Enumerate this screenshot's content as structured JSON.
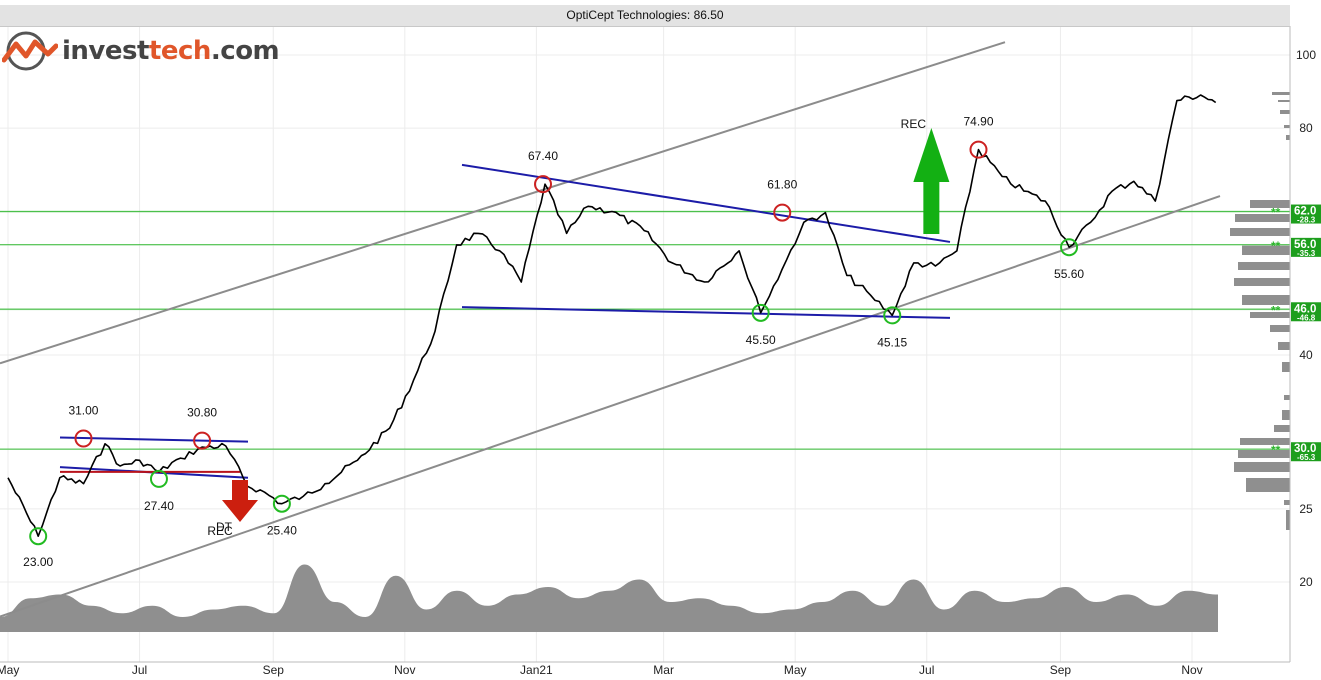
{
  "app": {
    "title": "OptiCept Technologies: 86.50",
    "logo": {
      "part1": "invest",
      "part2": "tech",
      "part3": ".com"
    }
  },
  "colors": {
    "price_line": "#000000",
    "trend_channel": "#8c8c8c",
    "rectangle": "#1c1ca8",
    "support_resistance": "#2db52d",
    "volume": "#8f8f8f",
    "buy_signal": "#13b013",
    "sell_signal": "#cc1f0f",
    "top_circle": "#cc2222",
    "bottom_circle": "#22bb22"
  },
  "chart_data": {
    "type": "line",
    "title": "OptiCept Technologies: 86.50",
    "y_scale": "log",
    "ylim": [
      17,
      104
    ],
    "y_ticks": [
      20,
      25,
      40,
      80,
      100
    ],
    "x_tick_labels": [
      "May",
      "Jul",
      "Sep",
      "Nov",
      "Jan21",
      "Mar",
      "May",
      "Jul",
      "Sep",
      "Nov"
    ],
    "x_range": [
      "2020-05",
      "2021-11"
    ],
    "series": [
      {
        "x": [
          "2020-05-01",
          "2020-05-15",
          "2020-05-25",
          "2020-06-05",
          "2020-06-15",
          "2020-06-22",
          "2020-07-01",
          "2020-07-10",
          "2020-07-20",
          "2020-07-30",
          "2020-08-10",
          "2020-08-20",
          "2020-08-26",
          "2020-09-05",
          "2020-09-15",
          "2020-09-25",
          "2020-10-10",
          "2020-10-25",
          "2020-11-05",
          "2020-11-15",
          "2020-11-25",
          "2020-12-05",
          "2020-12-15",
          "2020-12-25",
          "2021-01-05",
          "2021-01-15",
          "2021-01-25",
          "2021-02-05",
          "2021-02-20",
          "2021-03-05",
          "2021-03-20",
          "2021-04-05",
          "2021-04-15",
          "2021-04-25",
          "2021-05-05",
          "2021-05-15",
          "2021-05-25",
          "2021-06-05",
          "2021-06-15",
          "2021-06-25",
          "2021-07-05",
          "2021-07-15",
          "2021-07-25",
          "2021-08-05",
          "2021-08-15",
          "2021-08-25",
          "2021-09-05",
          "2021-09-15",
          "2021-09-25",
          "2021-10-05",
          "2021-10-15",
          "2021-10-25",
          "2021-11-05",
          "2021-11-12"
        ],
        "values": [
          27.5,
          23.0,
          27.5,
          27.0,
          30.5,
          28.5,
          29.0,
          28.0,
          29.2,
          30.2,
          30.3,
          26.8,
          26.5,
          25.4,
          26.0,
          27.0,
          29.0,
          32.0,
          37.0,
          43.0,
          56.0,
          58.0,
          55.0,
          50.0,
          67.4,
          58.0,
          63.0,
          62.0,
          58.5,
          53.0,
          50.0,
          55.0,
          45.5,
          52.0,
          60.0,
          61.8,
          51.0,
          48.0,
          45.15,
          53.0,
          52.5,
          55.0,
          74.9,
          69.0,
          66.0,
          64.0,
          55.6,
          60.0,
          66.0,
          68.0,
          64.0,
          87.0,
          88.5,
          86.5
        ]
      }
    ],
    "volume": [
      0.2,
      0.45,
      0.5,
      0.35,
      0.25,
      0.35,
      0.2,
      0.3,
      0.35,
      0.25,
      0.9,
      0.4,
      0.2,
      0.75,
      0.3,
      0.55,
      0.35,
      0.5,
      0.6,
      0.45,
      0.55,
      0.7,
      0.4,
      0.45,
      0.35,
      0.25,
      0.3,
      0.4,
      0.55,
      0.35,
      0.7,
      0.3,
      0.55,
      0.4,
      0.45,
      0.6,
      0.4,
      0.5,
      0.35,
      0.55,
      0.5
    ],
    "annotations": {
      "tops": [
        "31.00",
        "30.80",
        "67.40",
        "61.80",
        "74.90"
      ],
      "bottoms": [
        "23.00",
        "27.40",
        "25.40",
        "45.50",
        "45.15",
        "55.60"
      ],
      "signals": [
        {
          "label": "REC",
          "direction": "up",
          "at": "2021-07"
        },
        {
          "label": "REC",
          "direction": "down",
          "at": "2020-08"
        },
        {
          "label": "DT",
          "direction": "down",
          "at": "2020-08"
        }
      ]
    },
    "support_resistance_levels": [
      {
        "level": "62.0",
        "change": "-28.3",
        "marker": "**"
      },
      {
        "level": "56.0",
        "change": "-35.3",
        "marker": "**"
      },
      {
        "level": "46.0",
        "change": "-46.8",
        "marker": "**"
      },
      {
        "level": "30.0",
        "change": "-65.3",
        "marker": "**"
      }
    ],
    "grid": true,
    "legend": "none"
  }
}
